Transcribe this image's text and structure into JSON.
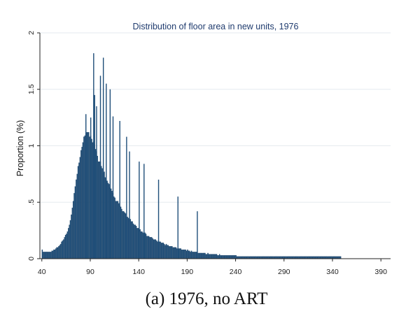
{
  "chart_data": {
    "type": "bar",
    "title": "Distribution of floor area in new units, 1976",
    "ylabel": "Proportion (%)",
    "xlabel": "",
    "xlim": [
      38,
      400
    ],
    "ylim": [
      0,
      2
    ],
    "x_ticks": [
      "40",
      "90",
      "140",
      "190",
      "240",
      "290",
      "340",
      "390"
    ],
    "y_ticks": [
      "0",
      ".5",
      "1",
      "1.5",
      "2"
    ],
    "grid": true,
    "bar_color": "#1f4e79",
    "bin_width": 1,
    "x_start": 40,
    "values": [
      0.08,
      0.06,
      0.06,
      0.06,
      0.06,
      0.06,
      0.06,
      0.06,
      0.06,
      0.06,
      0.07,
      0.07,
      0.08,
      0.08,
      0.09,
      0.1,
      0.1,
      0.11,
      0.12,
      0.13,
      0.15,
      0.16,
      0.17,
      0.19,
      0.21,
      0.22,
      0.24,
      0.27,
      0.3,
      0.34,
      0.39,
      0.45,
      0.51,
      0.58,
      0.64,
      0.7,
      0.75,
      0.82,
      0.85,
      0.9,
      0.96,
      0.99,
      1.03,
      1.08,
      1.09,
      1.11,
      1.12,
      1.12,
      1.12,
      1.08,
      1.09,
      1.06,
      1.03,
      1.04,
      1.01,
      0.97,
      0.95,
      0.91,
      0.86,
      0.86,
      0.86,
      0.82,
      0.8,
      0.76,
      0.77,
      0.72,
      0.71,
      0.69,
      0.67,
      0.66,
      0.63,
      0.62,
      0.6,
      0.58,
      0.55,
      0.54,
      0.51,
      0.51,
      0.51,
      0.49,
      0.47,
      0.46,
      0.44,
      0.42,
      0.42,
      0.41,
      0.4,
      0.37,
      0.37,
      0.36,
      0.35,
      0.35,
      0.33,
      0.33,
      0.31,
      0.3,
      0.3,
      0.29,
      0.27,
      0.27,
      0.27,
      0.26,
      0.24,
      0.24,
      0.23,
      0.22,
      0.23,
      0.22,
      0.2,
      0.2,
      0.2,
      0.19,
      0.19,
      0.19,
      0.18,
      0.17,
      0.17,
      0.17,
      0.16,
      0.15,
      0.16,
      0.15,
      0.15,
      0.14,
      0.14,
      0.14,
      0.13,
      0.12,
      0.13,
      0.12,
      0.12,
      0.11,
      0.11,
      0.11,
      0.11,
      0.1,
      0.1,
      0.1,
      0.1,
      0.09,
      0.09,
      0.09,
      0.09,
      0.09,
      0.08,
      0.08,
      0.08,
      0.08,
      0.08,
      0.07,
      0.08,
      0.07,
      0.07,
      0.06,
      0.07,
      0.06,
      0.06,
      0.06,
      0.06,
      0.06,
      0.06,
      0.05,
      0.05,
      0.05,
      0.05,
      0.05,
      0.05,
      0.05,
      0.05,
      0.04,
      0.04,
      0.05,
      0.04,
      0.04,
      0.04,
      0.04,
      0.04,
      0.04,
      0.04,
      0.04,
      0.04,
      0.03,
      0.03,
      0.04,
      0.03,
      0.03,
      0.03,
      0.03,
      0.03,
      0.03,
      0.03,
      0.03,
      0.03,
      0.03,
      0.03,
      0.03,
      0.03,
      0.03,
      0.03,
      0.03,
      0.03,
      0.02,
      0.02,
      0.02,
      0.02,
      0.02,
      0.02,
      0.02,
      0.02,
      0.02,
      0.02,
      0.02,
      0.02,
      0.02,
      0.02,
      0.02,
      0.02,
      0.02,
      0.02,
      0.02,
      0.02,
      0.02,
      0.02,
      0.02,
      0.02,
      0.02,
      0.02,
      0.02,
      0.02,
      0.02,
      0.02,
      0.02,
      0.02,
      0.02,
      0.02,
      0.02,
      0.02,
      0.02,
      0.02,
      0.02,
      0.02,
      0.02,
      0.02,
      0.02,
      0.02,
      0.02,
      0.02,
      0.02,
      0.02,
      0.02,
      0.02,
      0.02,
      0.02,
      0.02,
      0.02,
      0.02,
      0.02,
      0.02,
      0.02,
      0.02,
      0.02,
      0.02,
      0.02,
      0.02,
      0.02,
      0.02,
      0.02,
      0.02,
      0.02,
      0.02,
      0.02,
      0.02,
      0.02,
      0.02,
      0.02,
      0.02,
      0.02,
      0.02,
      0.02,
      0.02,
      0.02,
      0.02,
      0.02,
      0.02,
      0.02,
      0.02,
      0.02,
      0.02,
      0.02,
      0.02,
      0.02,
      0.02,
      0.02,
      0.02,
      0.02,
      0.02,
      0.02,
      0.02,
      0.02,
      0.02,
      0.02,
      0.02,
      0.02,
      0.02,
      0.02,
      0.02,
      0.02,
      0.02,
      0.02
    ],
    "spikes": [
      {
        "x": 85,
        "y": 1.28
      },
      {
        "x": 90,
        "y": 1.25
      },
      {
        "x": 93,
        "y": 1.82
      },
      {
        "x": 94,
        "y": 1.45
      },
      {
        "x": 96,
        "y": 1.35
      },
      {
        "x": 100,
        "y": 1.62
      },
      {
        "x": 103,
        "y": 1.78
      },
      {
        "x": 106,
        "y": 1.55
      },
      {
        "x": 110,
        "y": 1.5
      },
      {
        "x": 113,
        "y": 1.26
      },
      {
        "x": 120,
        "y": 1.22
      },
      {
        "x": 127,
        "y": 1.08
      },
      {
        "x": 130,
        "y": 0.95
      },
      {
        "x": 140,
        "y": 0.86
      },
      {
        "x": 145,
        "y": 0.84
      },
      {
        "x": 160,
        "y": 0.7
      },
      {
        "x": 180,
        "y": 0.55
      },
      {
        "x": 200,
        "y": 0.42
      }
    ]
  },
  "caption": "(a) 1976, no ART"
}
